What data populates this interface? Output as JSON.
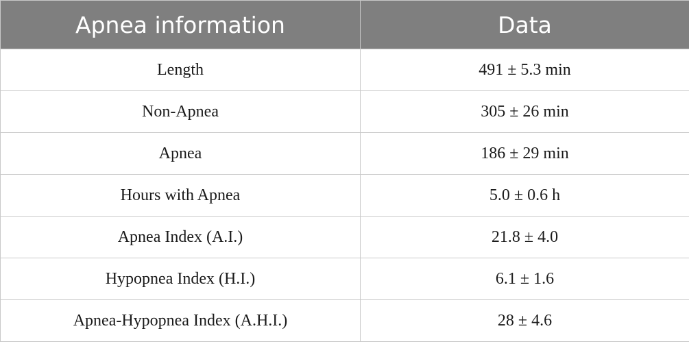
{
  "table": {
    "headers": [
      "Apnea information",
      "Data"
    ],
    "rows": [
      [
        "Length",
        "491 ± 5.3 min"
      ],
      [
        "Non-Apnea",
        "305 ± 26 min"
      ],
      [
        "Apnea",
        "186 ± 29 min"
      ],
      [
        "Hours with Apnea",
        "5.0 ± 0.6 h"
      ],
      [
        "Apnea Index (A.I.)",
        "21.8 ± 4.0"
      ],
      [
        "Hypopnea Index (H.I.)",
        "6.1 ± 1.6"
      ],
      [
        "Apnea-Hypopnea Index (A.H.I.)",
        "28 ± 4.6"
      ]
    ]
  },
  "colors": {
    "header_bg": "#7f7f7f",
    "header_text": "#ffffff",
    "border": "#c9c9c9",
    "body_text": "#1a1a1a"
  }
}
